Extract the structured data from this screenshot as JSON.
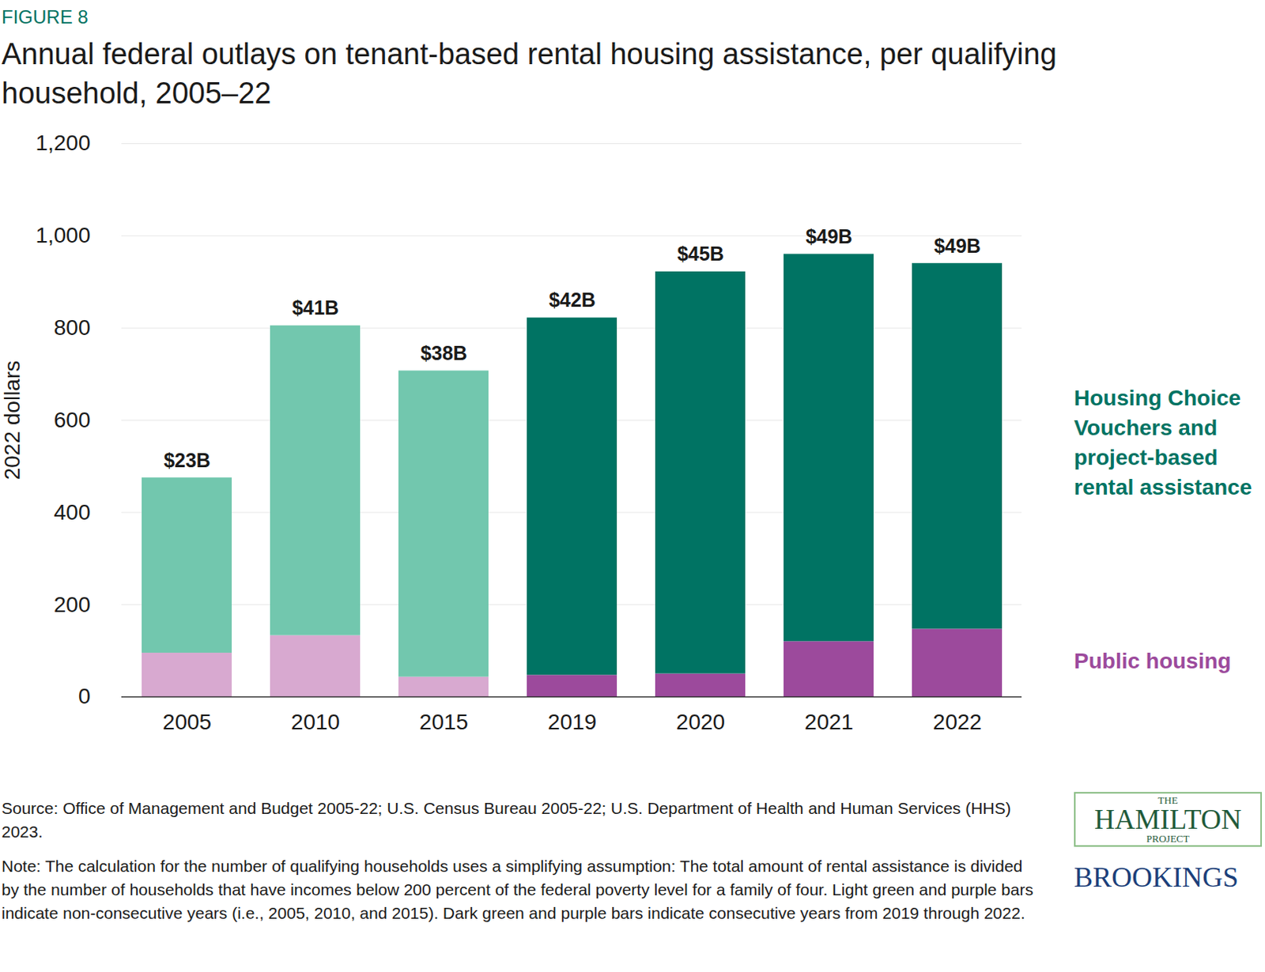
{
  "chart_data": {
    "type": "bar",
    "stacked": true,
    "figure_label": "FIGURE 8",
    "title": "Annual federal outlays on tenant-based rental housing assistance, per qualifying household, 2005–22",
    "y_label": "2022 dollars",
    "categories": [
      "2005",
      "2010",
      "2015",
      "2019",
      "2020",
      "2021",
      "2022"
    ],
    "series": [
      {
        "name": "Housing Choice Vouchers and project-based rental assistance",
        "color": "#007363",
        "colors": [
          "#72c7ae",
          "#72c7ae",
          "#72c7ae",
          "#007363",
          "#007363",
          "#007363",
          "#007363"
        ],
        "values": [
          380,
          672,
          664,
          775,
          872,
          840,
          793
        ]
      },
      {
        "name": "Public housing",
        "color": "#9c4a9c",
        "colors": [
          "#d8a9d0",
          "#d8a9d0",
          "#d8a9d0",
          "#9c4a9c",
          "#9c4a9c",
          "#9c4a9c",
          "#9c4a9c"
        ],
        "values": [
          95,
          133,
          43,
          47,
          50,
          120,
          147
        ]
      }
    ],
    "total_labels": [
      "$23B",
      "$41B",
      "$38B",
      "$42B",
      "$45B",
      "$49B",
      "$49B"
    ],
    "ylim": [
      0,
      1200
    ],
    "yticks": [
      0,
      200,
      400,
      600,
      800,
      {
        "value": 1000,
        "label": "1,000"
      },
      {
        "value": 1200,
        "label": "1,200"
      }
    ],
    "grid": true,
    "source": "Source: Office of Management and Budget 2005-22; U.S. Census Bureau 2005-22; U.S. Department of Health and Human Services (HHS) 2023.",
    "note": "Note: The calculation for the number of qualifying households uses a simplifying assumption: The total amount of rental assistance is divided by the number of households that have incomes below 200 percent of the federal poverty level for a family of four. Light green and purple bars indicate non-consecutive years (i.e., 2005, 2010, and 2015). Dark green and purple bars indicate consecutive years from 2019 through 2022.",
    "branding": [
      "THE",
      "HAMILTON",
      "PROJECT",
      "BROOKINGS"
    ]
  }
}
